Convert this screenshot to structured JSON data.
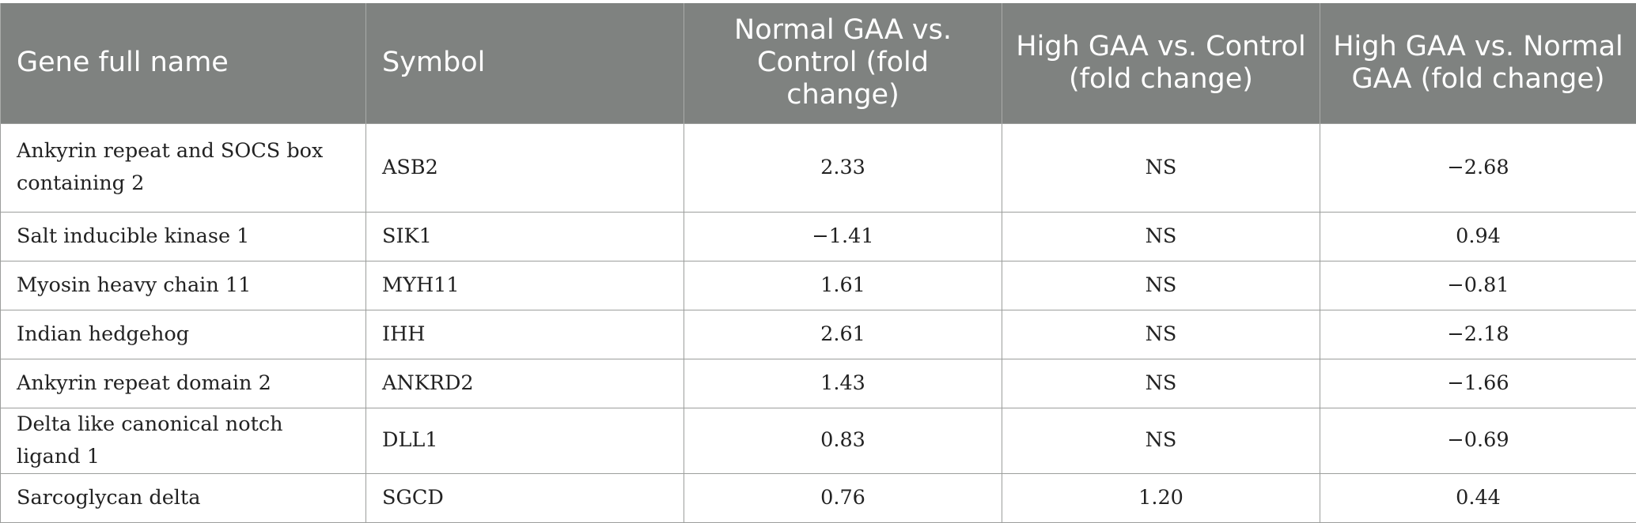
{
  "table": {
    "headers": [
      "Gene full name",
      "Symbol",
      "Normal GAA vs. Control (fold change)",
      "High GAA vs. Control (fold change)",
      "High GAA vs. Normal GAA (fold change)"
    ],
    "rows": [
      [
        "Ankyrin repeat and SOCS box containing 2",
        "ASB2",
        "2.33",
        "NS",
        "−2.68"
      ],
      [
        "Salt inducible kinase 1",
        "SIK1",
        "−1.41",
        "NS",
        "0.94"
      ],
      [
        "Myosin heavy chain 11",
        "MYH11",
        "1.61",
        "NS",
        "−0.81"
      ],
      [
        "Indian hedgehog",
        "IHH",
        "2.61",
        "NS",
        "−2.18"
      ],
      [
        "Ankyrin repeat domain 2",
        "ANKRD2",
        "1.43",
        "NS",
        "−1.66"
      ],
      [
        "Delta like canonical notch ligand 1",
        "DLL1",
        "0.83",
        "NS",
        "−0.69"
      ],
      [
        "Sarcoglycan delta",
        "SGCD",
        "0.76",
        "1.20",
        "0.44"
      ]
    ]
  }
}
